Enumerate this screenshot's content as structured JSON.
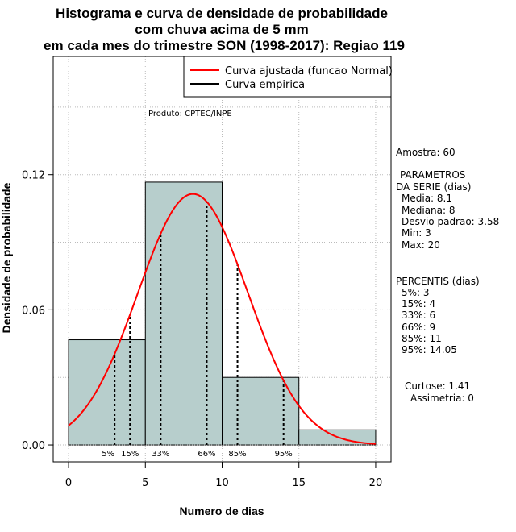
{
  "chart_data": {
    "type": "histogram",
    "title_lines": [
      "Histograma e curva de densidade de probabilidade",
      "com chuva acima de 5 mm",
      "em cada mes do trimestre SON (1998-2017): Regiao 119"
    ],
    "xlabel": "Numero de dias",
    "ylabel": "Densidade de probabilidade",
    "xlim": [
      -1,
      21
    ],
    "ylim": [
      -0.0075,
      0.1725
    ],
    "x_ticks": [
      0,
      5,
      10,
      15,
      20
    ],
    "x_tick_labels": [
      "0",
      "5",
      "10",
      "15",
      "20"
    ],
    "y_ticks": [
      0.0,
      0.06,
      0.12
    ],
    "y_tick_labels": [
      "0.00",
      "0.06",
      "0.12"
    ],
    "grid": true,
    "bins": [
      {
        "from": 0,
        "to": 5,
        "density": 0.0467
      },
      {
        "from": 5,
        "to": 10,
        "density": 0.1167
      },
      {
        "from": 10,
        "to": 15,
        "density": 0.03
      },
      {
        "from": 15,
        "to": 20,
        "density": 0.0067
      }
    ],
    "normal_curve": {
      "mean": 8.1,
      "sd": 3.58,
      "x_range": [
        0,
        20
      ]
    },
    "percentiles": [
      {
        "label": "5%",
        "x": 3
      },
      {
        "label": "15%",
        "x": 4
      },
      {
        "label": "33%",
        "x": 6
      },
      {
        "label": "66%",
        "x": 9
      },
      {
        "label": "85%",
        "x": 11
      },
      {
        "label": "95%",
        "x": 14
      }
    ],
    "legend": {
      "position": "top-right",
      "items": [
        {
          "label": "Curva ajustada (funcao Normal)",
          "color": "#ff0000"
        },
        {
          "label": "Curva empirica",
          "color": "#000000"
        }
      ]
    },
    "annotation": "Produto: CPTEC/INPE",
    "colors": {
      "bar_fill": "#b7cecc",
      "curve": "#ff0000",
      "grid": "#bbbbbb"
    }
  },
  "side_panel": {
    "sample": "Amostra: 60",
    "params_header_1": "PARAMETROS",
    "params_header_2": "DA SERIE (dias)",
    "params": [
      "Media: 8.1",
      "Mediana: 8",
      "Desvio padrao: 3.58",
      "Min: 3",
      "Max: 20"
    ],
    "percentis_header": "PERCENTIS (dias)",
    "percentis": [
      "5%: 3",
      "15%: 4",
      "33%: 6",
      "66%: 9",
      "85%: 11",
      "95%: 14.05"
    ],
    "curtose": "Curtose: 1.41",
    "assimetria": "Assimetria: 0"
  }
}
